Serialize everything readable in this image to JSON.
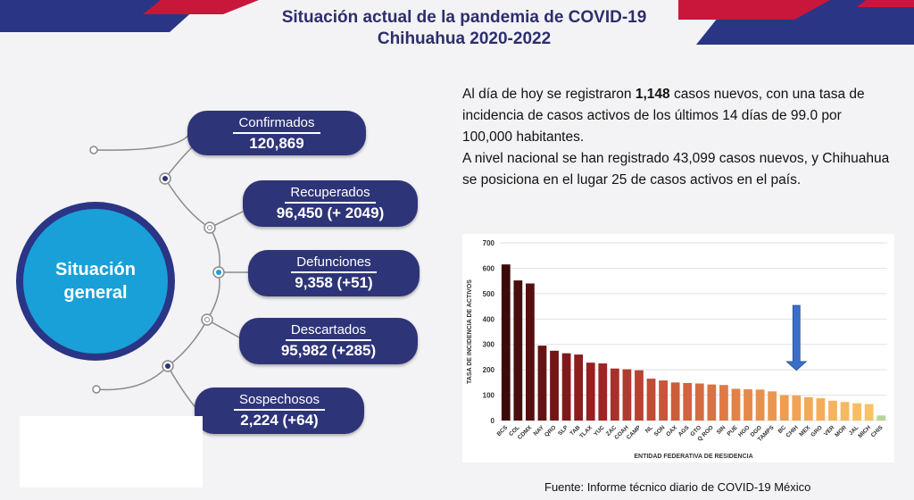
{
  "title_line1": "Situación actual de la pandemia de COVID-19",
  "title_line2": "Chihuahua 2020-2022",
  "hub_label_line1": "Situación",
  "hub_label_line2": "general",
  "stats": [
    {
      "label": "Confirmados",
      "value": "120,869"
    },
    {
      "label": "Recuperados",
      "value": "96,450 (+ 2049)"
    },
    {
      "label": "Defunciones",
      "value": "9,358 (+51)"
    },
    {
      "label": "Descartados",
      "value": "95,982 (+285)"
    },
    {
      "label": "Sospechosos",
      "value": "2,224 (+64)"
    }
  ],
  "summary": {
    "p1_a": "Al día de hoy se registraron ",
    "p1_b": "1,148",
    "p1_c": " casos nuevos, con una tasa de incidencia de casos activos de los últimos 14 días de 99.0 por 100,000 habitantes.",
    "p2": "A nivel nacional se han registrado 43,099 casos nuevos, y Chihuahua se posiciona en el lugar 25 de casos activos en el país."
  },
  "source": "Fuente: Informe técnico diario de COVID-19 México",
  "chart_data": {
    "type": "bar",
    "xlabel": "ENTIDAD FEDERATIVA DE RESIDENCIA",
    "ylabel": "TASA DE INCIDENCIA DE ACTIVOS",
    "ylim": [
      0,
      700
    ],
    "yticks": [
      0,
      100,
      200,
      300,
      400,
      500,
      600,
      700
    ],
    "grid": true,
    "categories": [
      "BCS",
      "COL",
      "CDMX",
      "NAY",
      "QRO",
      "SLP",
      "TAB",
      "TLAX",
      "YUC",
      "ZAC",
      "COAH",
      "CAMP",
      "NL",
      "SON",
      "OAX",
      "AGS",
      "GTO",
      "Q ROO",
      "SIN",
      "PUE",
      "HGO",
      "DGO",
      "TAMPS",
      "BC",
      "CHIH",
      "MEX",
      "GRO",
      "VER",
      "MOR",
      "JAL",
      "MICH",
      "CHIS"
    ],
    "values": [
      615,
      552,
      540,
      295,
      275,
      265,
      260,
      228,
      225,
      205,
      202,
      198,
      165,
      158,
      150,
      148,
      146,
      142,
      140,
      125,
      123,
      122,
      115,
      100,
      99,
      92,
      88,
      78,
      73,
      68,
      65,
      20
    ],
    "colors": [
      "#3d0a0a",
      "#4a0d0d",
      "#560f0f",
      "#661313",
      "#731616",
      "#801a1a",
      "#8c1d1d",
      "#962020",
      "#a02424",
      "#a8302a",
      "#b03a2e",
      "#b84232",
      "#bf4c35",
      "#c75538",
      "#cc5c3a",
      "#d2633d",
      "#d66b40",
      "#da7242",
      "#df7a45",
      "#e28247",
      "#e5894a",
      "#e8904d",
      "#eb9650",
      "#ee9d53",
      "#f0a356",
      "#f2a958",
      "#f4ae5b",
      "#f5b35d",
      "#f6b860",
      "#f7bd63",
      "#f8c266",
      "#b5d69a"
    ],
    "highlight_category": "CHIH",
    "arrow_color": "#3a6fc9"
  }
}
